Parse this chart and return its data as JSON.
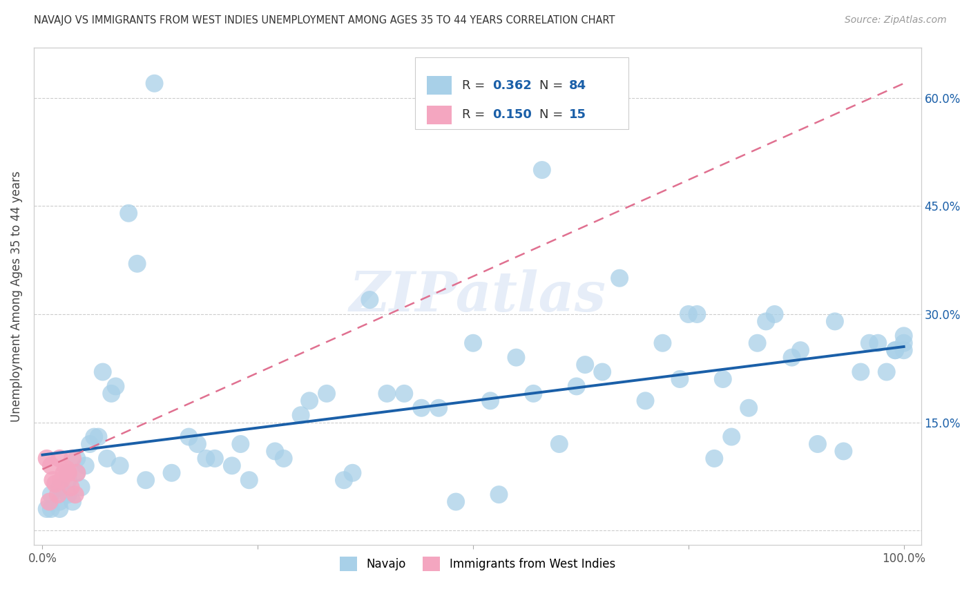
{
  "title": "NAVAJO VS IMMIGRANTS FROM WEST INDIES UNEMPLOYMENT AMONG AGES 35 TO 44 YEARS CORRELATION CHART",
  "source": "Source: ZipAtlas.com",
  "ylabel": "Unemployment Among Ages 35 to 44 years",
  "xlim": [
    -0.01,
    1.02
  ],
  "ylim": [
    -0.02,
    0.67
  ],
  "navajo_R": 0.362,
  "navajo_N": 84,
  "westindies_R": 0.15,
  "westindies_N": 15,
  "navajo_color": "#a8d0e8",
  "westindies_color": "#f4a6c0",
  "navajo_line_color": "#1a5fa8",
  "westindies_line_color": "#e07090",
  "background_color": "#ffffff",
  "watermark": "ZIPatlas",
  "navajo_x": [
    0.005,
    0.01,
    0.01,
    0.02,
    0.02,
    0.02,
    0.03,
    0.03,
    0.03,
    0.035,
    0.04,
    0.04,
    0.045,
    0.05,
    0.055,
    0.06,
    0.065,
    0.07,
    0.075,
    0.08,
    0.085,
    0.09,
    0.1,
    0.11,
    0.12,
    0.13,
    0.15,
    0.17,
    0.18,
    0.19,
    0.2,
    0.22,
    0.23,
    0.24,
    0.27,
    0.28,
    0.3,
    0.31,
    0.33,
    0.35,
    0.36,
    0.38,
    0.4,
    0.42,
    0.44,
    0.46,
    0.48,
    0.5,
    0.52,
    0.53,
    0.55,
    0.57,
    0.58,
    0.6,
    0.62,
    0.63,
    0.65,
    0.67,
    0.7,
    0.72,
    0.74,
    0.75,
    0.76,
    0.78,
    0.79,
    0.8,
    0.82,
    0.83,
    0.84,
    0.85,
    0.87,
    0.88,
    0.9,
    0.92,
    0.93,
    0.95,
    0.96,
    0.97,
    0.98,
    0.99,
    0.99,
    1.0,
    1.0,
    1.0
  ],
  "navajo_y": [
    0.03,
    0.05,
    0.03,
    0.06,
    0.04,
    0.03,
    0.08,
    0.07,
    0.05,
    0.04,
    0.1,
    0.08,
    0.06,
    0.09,
    0.12,
    0.13,
    0.13,
    0.22,
    0.1,
    0.19,
    0.2,
    0.09,
    0.44,
    0.37,
    0.07,
    0.62,
    0.08,
    0.13,
    0.12,
    0.1,
    0.1,
    0.09,
    0.12,
    0.07,
    0.11,
    0.1,
    0.16,
    0.18,
    0.19,
    0.07,
    0.08,
    0.32,
    0.19,
    0.19,
    0.17,
    0.17,
    0.04,
    0.26,
    0.18,
    0.05,
    0.24,
    0.19,
    0.5,
    0.12,
    0.2,
    0.23,
    0.22,
    0.35,
    0.18,
    0.26,
    0.21,
    0.3,
    0.3,
    0.1,
    0.21,
    0.13,
    0.17,
    0.26,
    0.29,
    0.3,
    0.24,
    0.25,
    0.12,
    0.29,
    0.11,
    0.22,
    0.26,
    0.26,
    0.22,
    0.25,
    0.25,
    0.27,
    0.25,
    0.26
  ],
  "westindies_x": [
    0.005,
    0.008,
    0.01,
    0.012,
    0.015,
    0.018,
    0.02,
    0.022,
    0.025,
    0.028,
    0.03,
    0.033,
    0.035,
    0.038,
    0.04
  ],
  "westindies_y": [
    0.1,
    0.04,
    0.09,
    0.07,
    0.065,
    0.05,
    0.1,
    0.07,
    0.08,
    0.085,
    0.08,
    0.06,
    0.1,
    0.05,
    0.08
  ],
  "navajo_trend_x0": 0.0,
  "navajo_trend_y0": 0.105,
  "navajo_trend_x1": 1.0,
  "navajo_trend_y1": 0.255,
  "wi_trend_x0": 0.0,
  "wi_trend_y0": 0.085,
  "wi_trend_x1": 1.0,
  "wi_trend_y1": 0.62
}
